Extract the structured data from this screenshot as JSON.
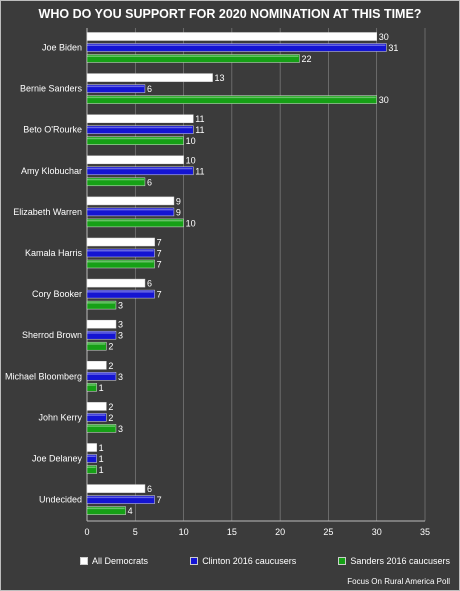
{
  "chart_data": {
    "type": "bar",
    "orientation": "horizontal",
    "title": "WHO DO YOU SUPPORT FOR 2020 NOMINATION AT THIS TIME?",
    "categories": [
      "Joe Biden",
      "Bernie Sanders",
      "Beto O'Rourke",
      "Amy Klobuchar",
      "Elizabeth Warren",
      "Kamala Harris",
      "Cory Booker",
      "Sherrod Brown",
      "Michael Bloomberg",
      "John Kerry",
      "Joe Delaney",
      "Undecided"
    ],
    "series": [
      {
        "name": "All Democrats",
        "color": "#ffffff",
        "values": [
          30,
          13,
          11,
          10,
          9,
          7,
          6,
          3,
          2,
          2,
          1,
          6
        ]
      },
      {
        "name": "Clinton 2016 caucusers",
        "color": "#1414d2",
        "values": [
          31,
          6,
          11,
          11,
          9,
          7,
          7,
          3,
          3,
          2,
          1,
          7
        ]
      },
      {
        "name": "Sanders 2016 caucusers",
        "color": "#16a016",
        "values": [
          22,
          30,
          10,
          6,
          10,
          7,
          3,
          2,
          1,
          3,
          1,
          4
        ]
      }
    ],
    "xlim": [
      0,
      35
    ],
    "xticks": [
      0,
      5,
      10,
      15,
      20,
      25,
      30,
      35
    ],
    "grid": true,
    "legend_position": "bottom",
    "source": "Focus On Rural America Poll"
  }
}
